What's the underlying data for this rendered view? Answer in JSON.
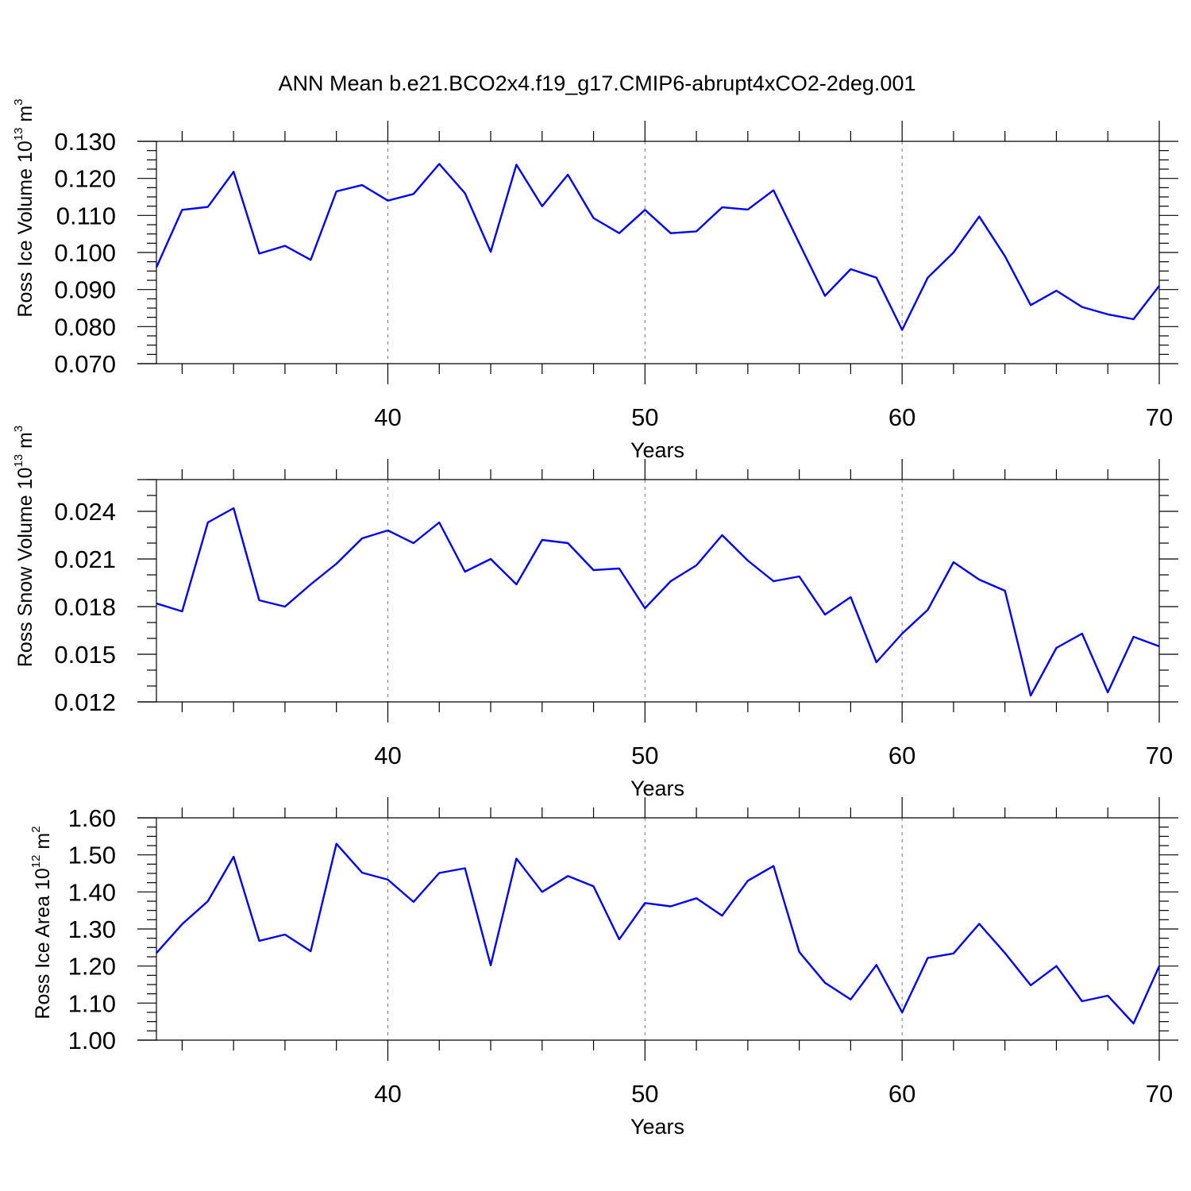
{
  "figure": {
    "title": "ANN Mean b.e21.BCO2x4.f19_g17.CMIP6-abrupt4xCO2-2deg.001"
  },
  "colors": {
    "line": "#0000ff",
    "axis": "#000000",
    "grid": "#777777"
  },
  "chart_data": [
    {
      "type": "line",
      "title": "",
      "xlabel": "Years",
      "ylabel": {
        "text": "Ross Ice Volume 10",
        "exp": "13",
        "unit": "m",
        "unit_exp": "3"
      },
      "xlim": [
        31,
        70
      ],
      "ylim": [
        0.07,
        0.13
      ],
      "yticks": [
        0.07,
        0.08,
        0.09,
        0.1,
        0.11,
        0.12,
        0.13
      ],
      "ytick_labels": [
        "0.070",
        "0.080",
        "0.090",
        "0.100",
        "0.110",
        "0.120",
        "0.130"
      ],
      "ytick_minor_step": 0.0025,
      "xticks": [
        40,
        50,
        60,
        70
      ],
      "xtick_labels": [
        "40",
        "50",
        "60",
        "70"
      ],
      "x_minor_ticks": [
        32,
        34,
        36,
        38,
        42,
        44,
        46,
        48,
        52,
        54,
        56,
        58,
        62,
        64,
        66,
        68
      ],
      "grid": "vertical dashed at major x ticks",
      "x": [
        31,
        32,
        33,
        34,
        35,
        36,
        37,
        38,
        39,
        40,
        41,
        42,
        43,
        44,
        45,
        46,
        47,
        48,
        49,
        50,
        51,
        52,
        53,
        54,
        55,
        56,
        57,
        58,
        59,
        60,
        61,
        62,
        63,
        64,
        65,
        66,
        67,
        68,
        69,
        70
      ],
      "values": [
        0.096,
        0.1115,
        0.1123,
        0.1218,
        0.0997,
        0.1018,
        0.098,
        0.1165,
        0.1182,
        0.114,
        0.1158,
        0.1239,
        0.116,
        0.1002,
        0.1237,
        0.1125,
        0.121,
        0.1093,
        0.1052,
        0.1115,
        0.1052,
        0.1057,
        0.1122,
        0.1116,
        0.1168,
        0.1025,
        0.0883,
        0.0955,
        0.0932,
        0.0791,
        0.0932,
        0.1,
        0.1097,
        0.099,
        0.0858,
        0.0897,
        0.0853,
        0.0833,
        0.082,
        0.091
      ]
    },
    {
      "type": "line",
      "title": "",
      "xlabel": "Years",
      "ylabel": {
        "text": "Ross Snow Volume 10",
        "exp": "13",
        "unit": "m",
        "unit_exp": "3"
      },
      "xlim": [
        31,
        70
      ],
      "ylim": [
        0.012,
        0.026
      ],
      "yticks": [
        0.012,
        0.015,
        0.018,
        0.021,
        0.024
      ],
      "ytick_labels": [
        "0.012",
        "0.015",
        "0.018",
        "0.021",
        "0.024"
      ],
      "ytick_minor_step": 0.001,
      "xticks": [
        40,
        50,
        60,
        70
      ],
      "xtick_labels": [
        "40",
        "50",
        "60",
        "70"
      ],
      "x_minor_ticks": [
        32,
        34,
        36,
        38,
        42,
        44,
        46,
        48,
        52,
        54,
        56,
        58,
        62,
        64,
        66,
        68
      ],
      "grid": "vertical dashed at major x ticks",
      "x": [
        31,
        32,
        33,
        34,
        35,
        36,
        37,
        38,
        39,
        40,
        41,
        42,
        43,
        44,
        45,
        46,
        47,
        48,
        49,
        50,
        51,
        52,
        53,
        54,
        55,
        56,
        57,
        58,
        59,
        60,
        61,
        62,
        63,
        64,
        65,
        66,
        67,
        68,
        69,
        70
      ],
      "values": [
        0.0182,
        0.0177,
        0.0233,
        0.0242,
        0.0184,
        0.018,
        0.0194,
        0.0207,
        0.0223,
        0.0228,
        0.022,
        0.0233,
        0.0202,
        0.021,
        0.0194,
        0.0222,
        0.022,
        0.0203,
        0.0204,
        0.0179,
        0.0196,
        0.0206,
        0.0225,
        0.0209,
        0.0196,
        0.0199,
        0.0175,
        0.0186,
        0.0145,
        0.0163,
        0.0178,
        0.0208,
        0.0197,
        0.019,
        0.0124,
        0.0154,
        0.0163,
        0.0126,
        0.0161,
        0.0155
      ]
    },
    {
      "type": "line",
      "title": "",
      "xlabel": "Years",
      "ylabel": {
        "text": "Ross Ice Area 10",
        "exp": "12",
        "unit": "m",
        "unit_exp": "2"
      },
      "xlim": [
        31,
        70
      ],
      "ylim": [
        1.0,
        1.6
      ],
      "yticks": [
        1.0,
        1.1,
        1.2,
        1.3,
        1.4,
        1.5,
        1.6
      ],
      "ytick_labels": [
        "1.00",
        "1.10",
        "1.20",
        "1.30",
        "1.40",
        "1.50",
        "1.60"
      ],
      "ytick_minor_step": 0.025,
      "xticks": [
        40,
        50,
        60,
        70
      ],
      "xtick_labels": [
        "40",
        "50",
        "60",
        "70"
      ],
      "x_minor_ticks": [
        32,
        34,
        36,
        38,
        42,
        44,
        46,
        48,
        52,
        54,
        56,
        58,
        62,
        64,
        66,
        68
      ],
      "grid": "vertical dashed at major x ticks",
      "x": [
        31,
        32,
        33,
        34,
        35,
        36,
        37,
        38,
        39,
        40,
        41,
        42,
        43,
        44,
        45,
        46,
        47,
        48,
        49,
        50,
        51,
        52,
        53,
        54,
        55,
        56,
        57,
        58,
        59,
        60,
        61,
        62,
        63,
        64,
        65,
        66,
        67,
        68,
        69,
        70
      ],
      "values": [
        1.235,
        1.313,
        1.375,
        1.495,
        1.268,
        1.285,
        1.24,
        1.53,
        1.452,
        1.433,
        1.373,
        1.451,
        1.464,
        1.202,
        1.49,
        1.4,
        1.443,
        1.415,
        1.272,
        1.37,
        1.361,
        1.383,
        1.336,
        1.43,
        1.47,
        1.238,
        1.155,
        1.11,
        1.203,
        1.075,
        1.222,
        1.234,
        1.314,
        1.235,
        1.148,
        1.2,
        1.105,
        1.12,
        1.045,
        1.2
      ]
    }
  ]
}
